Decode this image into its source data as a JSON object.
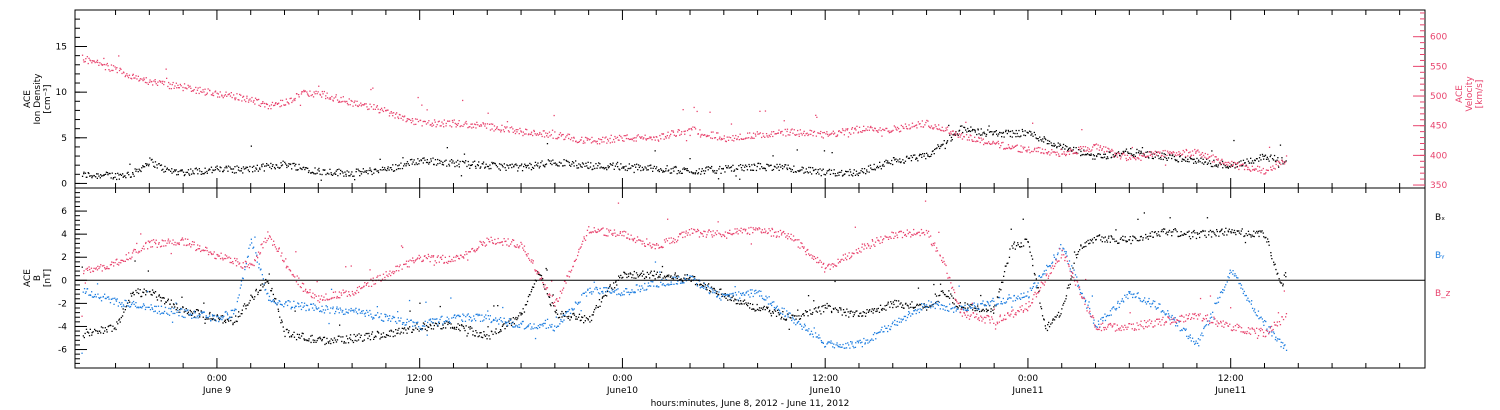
{
  "colors": {
    "black": "#000000",
    "pink": "#e8446e",
    "blue": "#1e7ee0",
    "axis": "#000000"
  },
  "xaxis": {
    "title": "hours:minutes, June  8, 2012 - June 11, 2012",
    "ticks": [
      {
        "t": 0,
        "time": "0:00",
        "date": "June 9"
      },
      {
        "t": 12,
        "time": "12:00",
        "date": "June 9"
      },
      {
        "t": 24,
        "time": "0:00",
        "date": "June10"
      },
      {
        "t": 36,
        "time": "12:00",
        "date": "June10"
      },
      {
        "t": 48,
        "time": "0:00",
        "date": "June11"
      },
      {
        "t": 60,
        "time": "12:00",
        "date": "June11"
      }
    ]
  },
  "chart_data": [
    {
      "type": "scatter",
      "panel": "top",
      "ylabel": [
        "ACE",
        "Ion Density",
        "[cm⁻³]"
      ],
      "ylabel_right": [
        "ACE",
        "Velocity",
        "[km/s]"
      ],
      "ylim": [
        -0.5,
        19
      ],
      "yticks": [
        0,
        5,
        10,
        15
      ],
      "ylim_right": [
        345,
        645
      ],
      "yticks_right": [
        350,
        400,
        450,
        500,
        550,
        600
      ],
      "xlim": [
        -8.4,
        71.5
      ],
      "series": [
        {
          "color": "black",
          "axis": "left",
          "points": [
            [
              -8,
              1.0
            ],
            [
              -6,
              0.9
            ],
            [
              -5,
              1.1
            ],
            [
              -4,
              2.5
            ],
            [
              -3,
              1.5
            ],
            [
              -2,
              1.3
            ],
            [
              0,
              1.6
            ],
            [
              2,
              1.6
            ],
            [
              4,
              2.2
            ],
            [
              6,
              1.4
            ],
            [
              8,
              1.2
            ],
            [
              10,
              1.6
            ],
            [
              12,
              2.6
            ],
            [
              14,
              2.3
            ],
            [
              16,
              2.0
            ],
            [
              18,
              1.8
            ],
            [
              20,
              2.4
            ],
            [
              22,
              2.0
            ],
            [
              24,
              1.9
            ],
            [
              26,
              1.7
            ],
            [
              28,
              1.4
            ],
            [
              30,
              1.6
            ],
            [
              32,
              1.9
            ],
            [
              34,
              1.7
            ],
            [
              36,
              1.2
            ],
            [
              38,
              1.3
            ],
            [
              40,
              2.5
            ],
            [
              42,
              3.0
            ],
            [
              44,
              6.0
            ],
            [
              46,
              5.5
            ],
            [
              48,
              5.6
            ],
            [
              50,
              4.0
            ],
            [
              52,
              3.0
            ],
            [
              54,
              3.5
            ],
            [
              56,
              3.0
            ],
            [
              58,
              2.5
            ],
            [
              60,
              2.0
            ],
            [
              62,
              3.0
            ],
            [
              63.3,
              2.5
            ]
          ]
        },
        {
          "color": "pink",
          "axis": "right",
          "points": [
            [
              -8,
              565
            ],
            [
              -6,
              545
            ],
            [
              -4,
              525
            ],
            [
              -2,
              515
            ],
            [
              0,
              505
            ],
            [
              2,
              495
            ],
            [
              3,
              485
            ],
            [
              4,
              490
            ],
            [
              5,
              505
            ],
            [
              6,
              505
            ],
            [
              8,
              490
            ],
            [
              10,
              475
            ],
            [
              12,
              455
            ],
            [
              14,
              455
            ],
            [
              16,
              450
            ],
            [
              18,
              440
            ],
            [
              20,
              435
            ],
            [
              22,
              425
            ],
            [
              24,
              430
            ],
            [
              26,
              430
            ],
            [
              28,
              445
            ],
            [
              30,
              430
            ],
            [
              32,
              435
            ],
            [
              34,
              440
            ],
            [
              36,
              435
            ],
            [
              38,
              445
            ],
            [
              40,
              445
            ],
            [
              42,
              455
            ],
            [
              44,
              435
            ],
            [
              46,
              420
            ],
            [
              48,
              410
            ],
            [
              50,
              405
            ],
            [
              52,
              415
            ],
            [
              54,
              395
            ],
            [
              56,
              405
            ],
            [
              58,
              405
            ],
            [
              60,
              385
            ],
            [
              62,
              375
            ],
            [
              63.3,
              395
            ]
          ]
        }
      ]
    },
    {
      "type": "scatter",
      "panel": "bottom",
      "ylabel": [
        "ACE",
        "B",
        "[nT]"
      ],
      "ylim": [
        -7.6,
        8.0
      ],
      "yticks": [
        -6,
        -4,
        -2,
        0,
        2,
        4,
        6
      ],
      "xlim": [
        -8.4,
        71.5
      ],
      "legend": [
        {
          "label": "Bₓ",
          "color": "black"
        },
        {
          "label": "Bᵧ",
          "color": "blue"
        },
        {
          "label": "B_z",
          "color": "pink"
        }
      ],
      "series": [
        {
          "color": "black",
          "points": [
            [
              -8,
              -4.6
            ],
            [
              -6,
              -4.0
            ],
            [
              -5,
              -1.0
            ],
            [
              -4,
              -1.0
            ],
            [
              -2,
              -2.6
            ],
            [
              0,
              -3.2
            ],
            [
              1,
              -3.5
            ],
            [
              2,
              -1.5
            ],
            [
              3,
              0.2
            ],
            [
              4,
              -4.5
            ],
            [
              6,
              -5.2
            ],
            [
              8,
              -5.0
            ],
            [
              10,
              -4.6
            ],
            [
              12,
              -4.0
            ],
            [
              14,
              -3.8
            ],
            [
              16,
              -4.8
            ],
            [
              18,
              -3.0
            ],
            [
              19,
              0.8
            ],
            [
              20,
              -2.8
            ],
            [
              22,
              -3.4
            ],
            [
              23,
              -1.0
            ],
            [
              24,
              0.5
            ],
            [
              26,
              0.5
            ],
            [
              28,
              0.2
            ],
            [
              30,
              -1.2
            ],
            [
              32,
              -2.4
            ],
            [
              34,
              -3.2
            ],
            [
              36,
              -2.4
            ],
            [
              38,
              -3.0
            ],
            [
              40,
              -2.0
            ],
            [
              42,
              -2.2
            ],
            [
              43,
              -1.0
            ],
            [
              44,
              -2.2
            ],
            [
              46,
              -2.5
            ],
            [
              47,
              3.0
            ],
            [
              48,
              3.5
            ],
            [
              49,
              -4.2
            ],
            [
              50,
              -2.5
            ],
            [
              51,
              3.0
            ],
            [
              52,
              3.8
            ],
            [
              54,
              3.5
            ],
            [
              56,
              4.3
            ],
            [
              58,
              4.0
            ],
            [
              60,
              4.3
            ],
            [
              62,
              4.0
            ],
            [
              63,
              -0.5
            ],
            [
              63.3,
              1.0
            ]
          ]
        },
        {
          "color": "blue",
          "points": [
            [
              -8,
              -0.8
            ],
            [
              -6,
              -1.8
            ],
            [
              -4,
              -2.4
            ],
            [
              -2,
              -2.8
            ],
            [
              0,
              -3.2
            ],
            [
              1,
              -2.8
            ],
            [
              2,
              3.5
            ],
            [
              3,
              -1.5
            ],
            [
              4,
              -2.0
            ],
            [
              6,
              -2.4
            ],
            [
              8,
              -2.6
            ],
            [
              10,
              -3.2
            ],
            [
              12,
              -3.8
            ],
            [
              14,
              -3.2
            ],
            [
              16,
              -3.2
            ],
            [
              18,
              -3.8
            ],
            [
              20,
              -4.0
            ],
            [
              22,
              -0.8
            ],
            [
              24,
              -1.0
            ],
            [
              26,
              -0.2
            ],
            [
              28,
              0.2
            ],
            [
              30,
              -1.5
            ],
            [
              32,
              -1.0
            ],
            [
              34,
              -3.2
            ],
            [
              36,
              -5.5
            ],
            [
              38,
              -5.5
            ],
            [
              40,
              -3.8
            ],
            [
              42,
              -2.0
            ],
            [
              44,
              -2.5
            ],
            [
              46,
              -1.8
            ],
            [
              48,
              -1.2
            ],
            [
              50,
              3.0
            ],
            [
              52,
              -4.0
            ],
            [
              54,
              -1.0
            ],
            [
              56,
              -2.5
            ],
            [
              58,
              -5.5
            ],
            [
              60,
              0.8
            ],
            [
              62,
              -3.8
            ],
            [
              63.3,
              -6.0
            ]
          ]
        },
        {
          "color": "pink",
          "points": [
            [
              -8,
              0.8
            ],
            [
              -6,
              1.5
            ],
            [
              -4,
              3.2
            ],
            [
              -2,
              3.4
            ],
            [
              0,
              2.2
            ],
            [
              2,
              1.2
            ],
            [
              3,
              4.0
            ],
            [
              4,
              1.8
            ],
            [
              5,
              -0.5
            ],
            [
              6,
              -1.5
            ],
            [
              8,
              -1.0
            ],
            [
              10,
              0.5
            ],
            [
              12,
              2.0
            ],
            [
              14,
              1.8
            ],
            [
              16,
              3.5
            ],
            [
              18,
              3.2
            ],
            [
              20,
              -2.0
            ],
            [
              22,
              4.5
            ],
            [
              24,
              4.0
            ],
            [
              26,
              3.0
            ],
            [
              28,
              4.2
            ],
            [
              30,
              4.0
            ],
            [
              32,
              4.5
            ],
            [
              34,
              3.8
            ],
            [
              36,
              1.0
            ],
            [
              38,
              2.8
            ],
            [
              40,
              4.0
            ],
            [
              42,
              4.2
            ],
            [
              43,
              1.5
            ],
            [
              44,
              -2.8
            ],
            [
              46,
              -3.5
            ],
            [
              48,
              -2.2
            ],
            [
              50,
              2.5
            ],
            [
              52,
              -4.0
            ],
            [
              54,
              -4.0
            ],
            [
              56,
              -3.5
            ],
            [
              58,
              -3.0
            ],
            [
              60,
              -4.0
            ],
            [
              62,
              -4.5
            ],
            [
              63.3,
              -3.0
            ]
          ]
        }
      ]
    }
  ]
}
